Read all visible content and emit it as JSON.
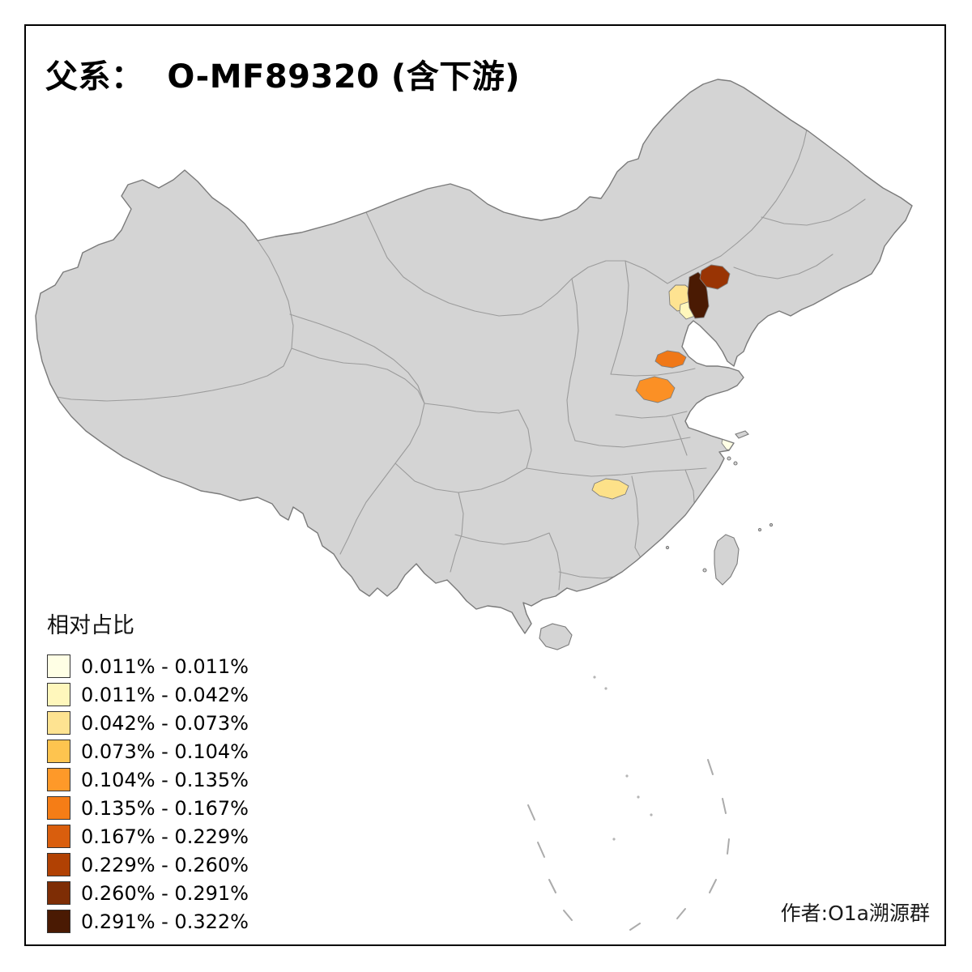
{
  "title": {
    "text": "父系：  O-MF89320 (含下游)"
  },
  "legend": {
    "title": "相对占比",
    "items": [
      {
        "label": "0.011% - 0.011%",
        "color": "#FFFFE5"
      },
      {
        "label": "0.011% - 0.042%",
        "color": "#FFF7BC"
      },
      {
        "label": "0.042% - 0.073%",
        "color": "#FEE391"
      },
      {
        "label": "0.073% - 0.104%",
        "color": "#FEC44F"
      },
      {
        "label": "0.104% - 0.135%",
        "color": "#FE9929"
      },
      {
        "label": "0.135% - 0.167%",
        "color": "#F57D16"
      },
      {
        "label": "0.167% - 0.229%",
        "color": "#D95E0D"
      },
      {
        "label": "0.229% - 0.260%",
        "color": "#B14103"
      },
      {
        "label": "0.260% - 0.291%",
        "color": "#7E2D05"
      },
      {
        "label": "0.291% - 0.322%",
        "color": "#4A1A03"
      }
    ]
  },
  "credit": {
    "text": "作者:O1a溯源群"
  },
  "map": {
    "base_fill": "#D4D4D4",
    "border_color": "#9B9B9B",
    "outline_color": "#7A7A7A",
    "highlighted_regions": [
      {
        "id": "map-region-beijing-area",
        "color": "#FEE391",
        "legend_range": "0.042% - 0.073%"
      },
      {
        "id": "map-region-tianjin-area",
        "color": "#FFF7BC",
        "legend_range": "0.011% - 0.042%"
      },
      {
        "id": "map-region-northeast-dark-strip",
        "color": "#4A1A03",
        "legend_range": "0.291% - 0.322%"
      },
      {
        "id": "map-region-west-liaoning-area",
        "color": "#993404",
        "legend_range": "0.229% - 0.260%"
      },
      {
        "id": "map-region-north-shandong-blob",
        "color": "#F07818",
        "legend_range": "0.135% - 0.167%"
      },
      {
        "id": "map-region-west-shandong-blob",
        "color": "#FB9025",
        "legend_range": "0.104% - 0.135%"
      },
      {
        "id": "map-region-shanghai-area",
        "color": "#FFFFE5",
        "legend_range": "0.011% - 0.011%"
      },
      {
        "id": "map-region-north-hunan-area",
        "color": "#FDE189",
        "legend_range": "0.042% - 0.073%"
      }
    ]
  }
}
